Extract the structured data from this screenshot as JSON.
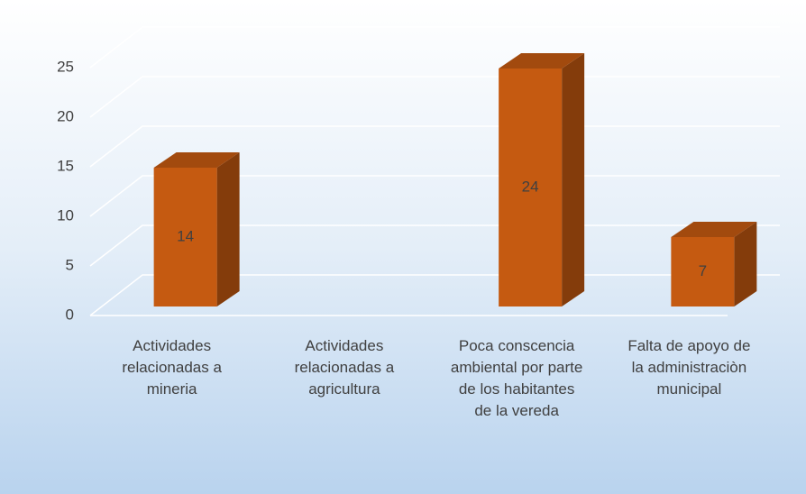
{
  "chart_data": {
    "type": "bar3d",
    "categories": [
      "Actividades relacionadas a mineria",
      "Actividades relacionadas a agricultura",
      "Poca conscencia ambiental por parte de los habitantes de la vereda",
      "Falta de apoyo de la administraciòn municipal"
    ],
    "values": [
      14,
      null,
      24,
      7
    ],
    "color": "#c55a11",
    "ylim": [
      0,
      25
    ],
    "yticks": [
      0,
      5,
      10,
      15,
      20,
      25
    ],
    "grid": true
  }
}
